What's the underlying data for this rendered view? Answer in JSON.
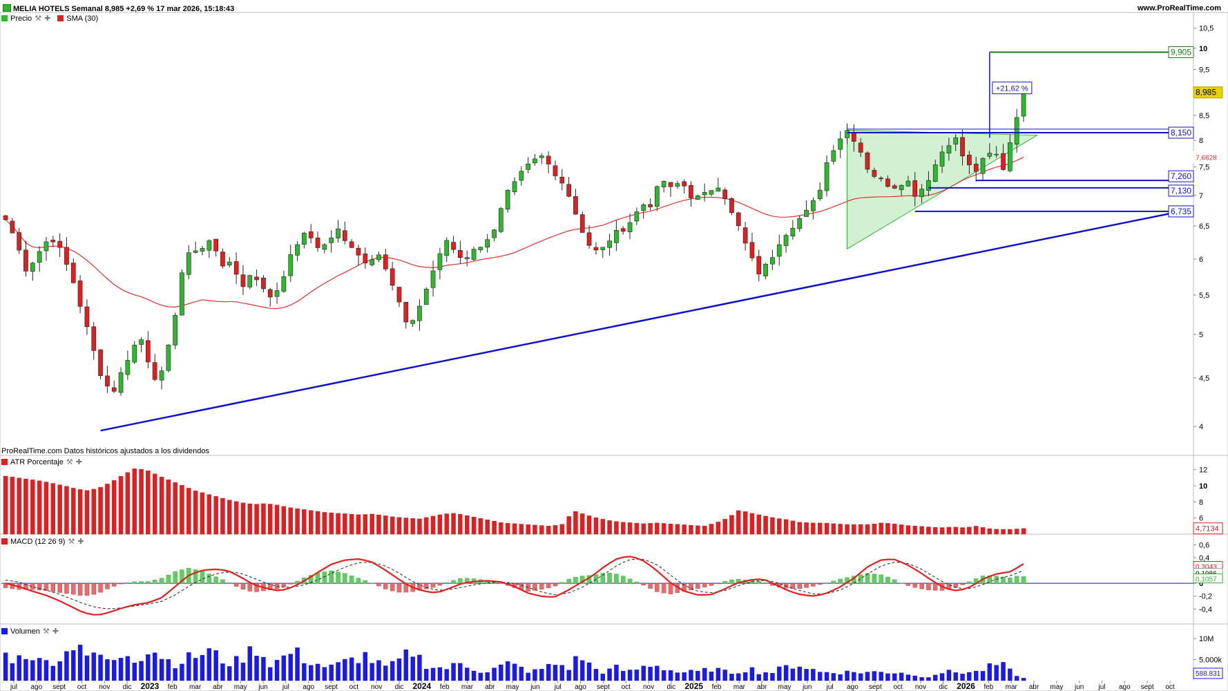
{
  "header": {
    "title": "MELIA HOTELS Semanal 8,985 +2,69 % 17 mar 2026, 15:18:43",
    "site": "www.ProRealTime.com"
  },
  "legends": {
    "price": "Precio",
    "sma": "SMA (30)",
    "atr": "ATR Porcentaje",
    "macd": "MACD (12 26 9)",
    "volume": "Volumen"
  },
  "note": "ProRealTime.com Datos históricos ajustados a los dividendos",
  "colors": {
    "up": "#2db82d",
    "down": "#e02020",
    "sma": "#e03030",
    "trend": "#1010cc",
    "triangle": "#c7ecc7",
    "target": "#1a7a1a",
    "atr": "#e02020",
    "volume": "#1a1aee"
  },
  "chart_data": [
    {
      "type": "candlestick",
      "panel": "price",
      "timeframe": "weekly",
      "y_axis_ticks": [
        "10,5",
        "10",
        "9,5",
        "9",
        "8,5",
        "8",
        "7,5",
        "7",
        "6,5",
        "6",
        "5,5",
        "5",
        "4,5",
        "4"
      ],
      "y_axis_tick_values": [
        10.5,
        10,
        9.5,
        9,
        8.5,
        8,
        7.5,
        7,
        6.5,
        6,
        5.5,
        5,
        4.5,
        4
      ],
      "x_axis_labels": [
        "jul",
        "ago",
        "sept",
        "oct",
        "nov",
        "dic",
        "2023",
        "feb",
        "mar",
        "abr",
        "may",
        "jun",
        "jul",
        "ago",
        "sept",
        "oct",
        "nov",
        "dic",
        "2024",
        "feb",
        "mar",
        "abr",
        "may",
        "jun",
        "jul",
        "ago",
        "sept",
        "oct",
        "nov",
        "dic",
        "2025",
        "feb",
        "mar",
        "abr",
        "may",
        "jun",
        "jul",
        "ago",
        "sept",
        "oct",
        "nov",
        "dic",
        "2026",
        "feb",
        "mar",
        "abr",
        "may",
        "jun",
        "jul",
        "ago",
        "sept",
        "oct"
      ],
      "close_path": [
        6.6,
        6.3,
        5.85,
        6.0,
        6.25,
        6.3,
        6.0,
        5.65,
        5.2,
        4.8,
        4.45,
        4.35,
        4.6,
        4.85,
        4.95,
        4.5,
        4.55,
        5.0,
        5.8,
        6.15,
        6.15,
        6.3,
        5.9,
        6.0,
        5.55,
        5.8,
        5.65,
        5.5,
        5.55,
        6.05,
        6.3,
        6.4,
        6.1,
        6.3,
        6.45,
        6.2,
        6.05,
        5.95,
        6.1,
        5.85,
        5.5,
        5.1,
        5.2,
        5.6,
        5.95,
        6.3,
        6.05,
        6.0,
        6.2,
        6.2,
        6.5,
        7.0,
        7.2,
        7.45,
        7.6,
        7.7,
        7.35,
        7.25,
        6.8,
        6.4,
        6.1,
        6.15,
        6.35,
        6.45,
        6.6,
        6.85,
        6.85,
        7.3,
        7.1,
        7.25,
        7.0,
        6.95,
        7.1,
        7.2,
        6.75,
        6.45,
        6.05,
        5.8,
        5.95,
        6.25,
        6.45,
        6.6,
        6.75,
        7.0,
        7.65,
        8.0,
        8.2,
        7.95,
        7.5,
        7.3,
        7.2,
        7.15,
        7.3,
        7.0,
        7.2,
        7.55,
        7.9,
        8.05,
        7.6,
        7.4,
        7.65,
        7.8,
        7.45,
        8.3,
        8.985
      ],
      "sma_period": 30,
      "sma_last": 7.6828,
      "last_price": 8.985,
      "price_labels": [
        "9,905",
        "8,985",
        "8,150",
        "7,6828",
        "7,260",
        "7,130",
        "6,735"
      ],
      "target_level": 9.905,
      "target_pct": "+21,62 %",
      "horizontal_levels": [
        8.15,
        7.26,
        7.13,
        6.735
      ],
      "trendline": {
        "from_price": 3.96,
        "to_price": 6.76
      },
      "triangle": {
        "apex_high": 8.2,
        "apex_low": 6.15,
        "end": 8.1
      }
    },
    {
      "type": "bar",
      "panel": "atr",
      "name": "ATR Porcentaje",
      "y_axis_ticks": [
        "12",
        "10",
        "8",
        "6"
      ],
      "y_axis_tick_values": [
        12,
        10,
        8,
        6
      ],
      "last_value": 4.7134,
      "last_label": "4,7134",
      "values_path": [
        11.2,
        11.0,
        10.8,
        10.6,
        10.3,
        10.0,
        9.6,
        9.4,
        9.8,
        10.5,
        11.4,
        12.2,
        11.9,
        11.2,
        10.6,
        10.0,
        9.4,
        9.0,
        8.6,
        8.2,
        7.9,
        7.7,
        7.8,
        7.6,
        7.3,
        7.1,
        6.9,
        6.7,
        6.6,
        6.5,
        6.4,
        6.5,
        6.3,
        6.1,
        6.0,
        5.9,
        6.2,
        6.5,
        6.6,
        6.3,
        6.0,
        5.7,
        5.4,
        5.3,
        5.2,
        5.1,
        5.0,
        5.2,
        6.9,
        6.4,
        6.0,
        5.7,
        5.5,
        5.4,
        5.3,
        5.4,
        5.3,
        5.2,
        5.1,
        5.0,
        5.4,
        6.0,
        7.0,
        6.6,
        6.3,
        6.0,
        5.8,
        5.5,
        5.4,
        5.4,
        5.3,
        5.2,
        5.2,
        5.2,
        5.4,
        5.3,
        5.1,
        5.0,
        4.9,
        4.8,
        4.9,
        4.8,
        5.0,
        4.7,
        4.6,
        4.6,
        4.7
      ]
    },
    {
      "type": "macd",
      "panel": "macd",
      "name": "MACD (12 26 9)",
      "y_axis_ticks": [
        "0,6",
        "0,4",
        "0,2",
        "0",
        "-0,2",
        "-0,4"
      ],
      "y_axis_tick_values": [
        0.6,
        0.4,
        0.2,
        0,
        -0.2,
        -0.4
      ],
      "last_values": {
        "macd": 0.3043,
        "signal": 0.1986,
        "histogram": 0.1057
      },
      "last_labels": [
        "0,3043",
        "0,1986",
        "0,1057"
      ],
      "macd_path": [
        0.0,
        -0.05,
        -0.12,
        -0.18,
        -0.26,
        -0.36,
        -0.46,
        -0.5,
        -0.45,
        -0.38,
        -0.33,
        -0.3,
        -0.22,
        -0.05,
        0.12,
        0.2,
        0.22,
        0.2,
        0.1,
        -0.02,
        -0.08,
        -0.12,
        -0.06,
        0.05,
        0.18,
        0.3,
        0.36,
        0.38,
        0.34,
        0.22,
        0.08,
        -0.05,
        -0.12,
        -0.15,
        -0.08,
        0.0,
        0.03,
        0.04,
        0.02,
        -0.05,
        -0.15,
        -0.2,
        -0.22,
        -0.12,
        0.0,
        0.12,
        0.28,
        0.4,
        0.42,
        0.34,
        0.18,
        0.0,
        -0.12,
        -0.18,
        -0.18,
        -0.1,
        0.0,
        0.05,
        0.07,
        -0.02,
        -0.12,
        -0.18,
        -0.2,
        -0.15,
        -0.05,
        0.08,
        0.25,
        0.36,
        0.38,
        0.3,
        0.18,
        0.04,
        -0.08,
        -0.12,
        -0.05,
        0.08,
        0.15,
        0.18,
        0.3
      ],
      "signal_path": [
        0.05,
        0.02,
        -0.05,
        -0.1,
        -0.16,
        -0.24,
        -0.32,
        -0.38,
        -0.4,
        -0.38,
        -0.35,
        -0.32,
        -0.28,
        -0.18,
        -0.05,
        0.06,
        0.14,
        0.18,
        0.16,
        0.08,
        0.0,
        -0.06,
        -0.06,
        -0.02,
        0.06,
        0.16,
        0.25,
        0.32,
        0.33,
        0.28,
        0.18,
        0.05,
        -0.05,
        -0.11,
        -0.1,
        -0.06,
        -0.02,
        0.01,
        0.02,
        0.0,
        -0.06,
        -0.13,
        -0.18,
        -0.16,
        -0.08,
        0.03,
        0.16,
        0.3,
        0.38,
        0.37,
        0.28,
        0.12,
        -0.03,
        -0.12,
        -0.15,
        -0.12,
        -0.05,
        0.02,
        0.05,
        0.02,
        -0.06,
        -0.12,
        -0.17,
        -0.16,
        -0.1,
        0.0,
        0.14,
        0.26,
        0.33,
        0.32,
        0.24,
        0.12,
        0.0,
        -0.08,
        -0.08,
        -0.01,
        0.07,
        0.12,
        0.2
      ]
    },
    {
      "type": "bar",
      "panel": "volume",
      "name": "Volumen",
      "y_axis_ticks": [
        "10M",
        "5.000k"
      ],
      "last_label": "588.831",
      "last_value": 588831,
      "values_path": [
        6,
        5,
        7,
        4,
        5,
        6,
        11,
        5,
        6,
        4,
        7,
        5,
        8,
        6,
        4,
        5,
        6,
        7,
        5,
        4,
        6,
        8,
        4,
        5,
        7,
        5,
        4,
        3,
        4,
        5,
        6,
        4,
        3,
        5,
        7,
        4,
        3,
        3,
        4,
        3,
        2,
        3,
        4,
        3,
        2,
        3,
        4,
        3,
        6,
        3,
        2,
        3,
        2,
        3,
        4,
        3,
        2,
        2,
        2,
        3,
        2,
        2,
        3,
        2,
        2,
        3,
        4,
        3,
        2,
        2,
        2,
        2,
        2,
        2,
        2,
        2,
        1,
        1,
        2,
        2,
        2,
        2,
        3,
        4,
        2,
        0.6
      ]
    }
  ]
}
